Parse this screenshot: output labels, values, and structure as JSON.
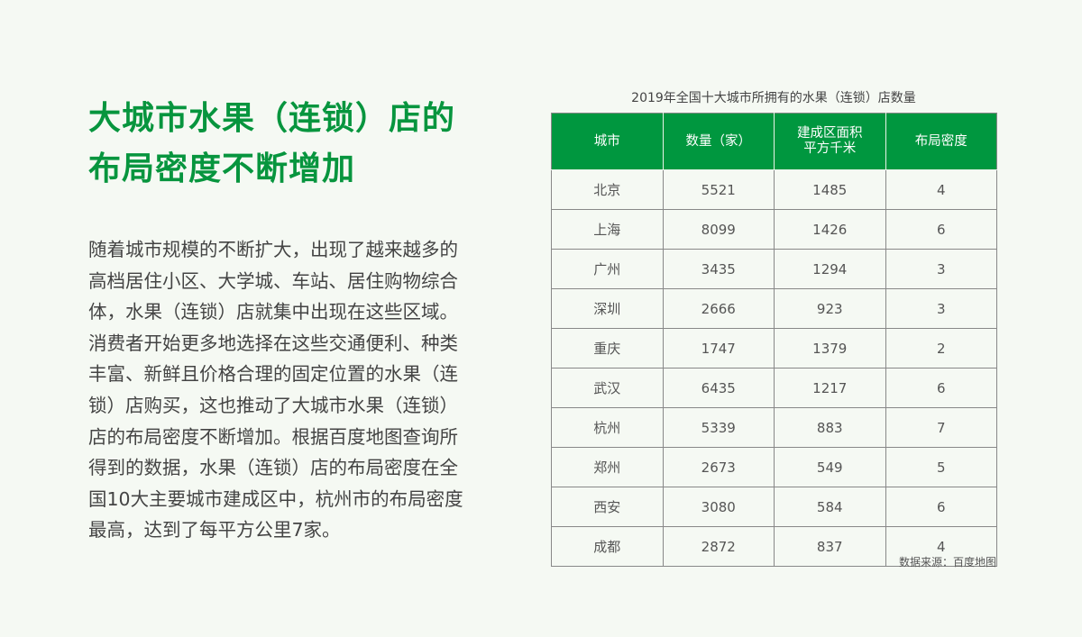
{
  "title_lines": [
    "大城市水果（连锁）店的",
    "布局密度不断增加"
  ],
  "paragraph_lines": [
    "随着城市规模的不断扩大，出现了越来越多的",
    "高档居住小区、大学城、车站、居住购物综合",
    "体，水果（连锁）店就集中出现在这些区域。",
    "消费者开始更多地选择在这些交通便利、种类",
    "丰富、新鲜且价格合理的固定位置的水果（连",
    "锁）店购买，这也推动了大城市水果（连锁）",
    "店的布局密度不断增加。根据百度地图查询所",
    "得到的数据，水果（连锁）店的布局密度在全",
    "国10大主要城市建成区中，杭州市的布局密度",
    "最高，达到了每平方公里7家。"
  ],
  "table": {
    "caption": "2019年全国十大城市所拥有的水果（连锁）店数量",
    "headers": [
      "城市",
      "数量（家）",
      "建成区面积\n平方千米",
      "布局密度"
    ],
    "rows": [
      [
        "北京",
        "5521",
        "1485",
        "4"
      ],
      [
        "上海",
        "8099",
        "1426",
        "6"
      ],
      [
        "广州",
        "3435",
        "1294",
        "3"
      ],
      [
        "深圳",
        "2666",
        "923",
        "3"
      ],
      [
        "重庆",
        "1747",
        "1379",
        "2"
      ],
      [
        "武汉",
        "6435",
        "1217",
        "6"
      ],
      [
        "杭州",
        "5339",
        "883",
        "7"
      ],
      [
        "郑州",
        "2673",
        "549",
        "5"
      ],
      [
        "西安",
        "3080",
        "584",
        "6"
      ],
      [
        "成都",
        "2872",
        "837",
        "4"
      ]
    ],
    "header_color": "#00973f"
  },
  "source": "数据来源：百度地图"
}
